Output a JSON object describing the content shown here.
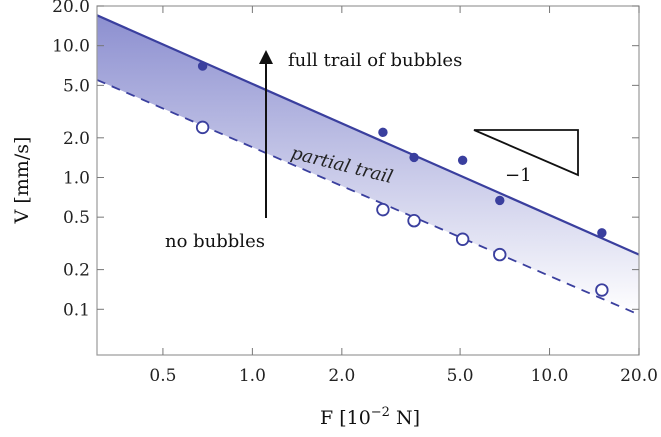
{
  "chart_data": {
    "type": "scatter",
    "xlabel_base": "F [10",
    "xlabel_exp": "−2",
    "xlabel_unit": " N]",
    "ylabel": "V [mm/s]",
    "x_scale": "log",
    "y_scale": "log",
    "xlim": [
      0.3,
      20.0
    ],
    "ylim": [
      0.045,
      20.0
    ],
    "x_ticks": [
      0.5,
      1.0,
      2.0,
      5.0,
      10.0,
      20.0
    ],
    "x_tick_labels": [
      "0.5",
      "1.0",
      "2.0",
      "5.0",
      "10.0",
      "20.0"
    ],
    "y_ticks": [
      0.1,
      0.2,
      0.5,
      1.0,
      2.0,
      5.0,
      10.0,
      20.0
    ],
    "y_tick_labels": [
      "0.1",
      "0.2",
      "0.5",
      "1.0",
      "2.0",
      "5.0",
      "10.0",
      "20.0"
    ],
    "grid": false,
    "series": [
      {
        "marker": "filled-circle",
        "points": [
          [
            0.68,
            7.0
          ],
          [
            2.75,
            2.2
          ],
          [
            3.5,
            1.42
          ],
          [
            5.1,
            1.35
          ],
          [
            6.8,
            0.67
          ],
          [
            15.0,
            0.38
          ]
        ]
      },
      {
        "marker": "open-circle",
        "points": [
          [
            0.68,
            2.4
          ],
          [
            2.75,
            0.57
          ],
          [
            3.5,
            0.47
          ],
          [
            5.1,
            0.34
          ],
          [
            6.8,
            0.26
          ],
          [
            15.0,
            0.14
          ]
        ]
      }
    ],
    "lines": [
      {
        "style": "solid",
        "from": [
          0.3,
          17.0
        ],
        "to": [
          20.0,
          0.26
        ]
      },
      {
        "style": "dashed",
        "from": [
          0.3,
          5.5
        ],
        "to": [
          20.0,
          0.091
        ]
      }
    ],
    "annotations": {
      "full_trail": "full trail of bubbles",
      "partial_trail": "partial trail",
      "no_bubbles": "no bubbles",
      "slope": "−1"
    },
    "colors": {
      "series": "#3a3f9e",
      "fill_top": "#8c8fd0",
      "fill_bottom": "#ffffff",
      "frame": "#9a9a9a"
    }
  }
}
